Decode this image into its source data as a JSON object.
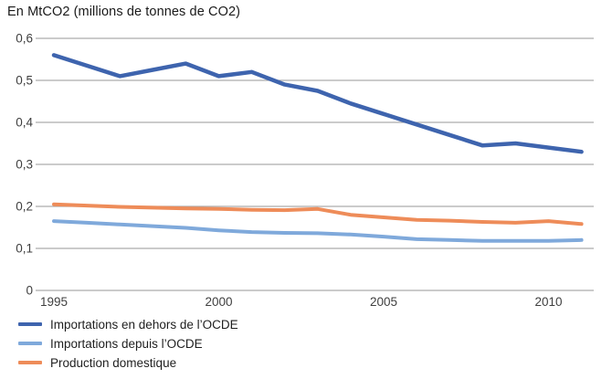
{
  "chart_data": {
    "type": "line",
    "title": "En MtCO2 (millions de tonnes de CO2)",
    "x": [
      1995,
      1996,
      1997,
      1998,
      1999,
      2000,
      2001,
      2002,
      2003,
      2004,
      2005,
      2006,
      2007,
      2008,
      2009,
      2010,
      2011
    ],
    "series": [
      {
        "name": "Importations en dehors de l’OCDE",
        "color": "#3e64ae",
        "stroke_width": 4.5,
        "values": [
          0.56,
          0.535,
          0.51,
          0.525,
          0.54,
          0.51,
          0.52,
          0.49,
          0.475,
          0.445,
          0.42,
          0.395,
          0.37,
          0.345,
          0.35,
          0.34,
          0.33
        ]
      },
      {
        "name": "Importations depuis l’OCDE",
        "color": "#7fa9db",
        "stroke_width": 4,
        "values": [
          0.165,
          0.161,
          0.157,
          0.153,
          0.149,
          0.143,
          0.139,
          0.137,
          0.136,
          0.133,
          0.128,
          0.122,
          0.12,
          0.118,
          0.118,
          0.118,
          0.12
        ]
      },
      {
        "name": "Production domestique",
        "color": "#ee8c59",
        "stroke_width": 4,
        "values": [
          0.205,
          0.202,
          0.199,
          0.197,
          0.195,
          0.194,
          0.192,
          0.191,
          0.194,
          0.18,
          0.174,
          0.168,
          0.166,
          0.163,
          0.161,
          0.165,
          0.158
        ]
      }
    ],
    "ylim": [
      0,
      0.6
    ],
    "xlabel": "",
    "ylabel": "",
    "y_ticks": {
      "values": [
        0,
        0.1,
        0.2,
        0.3,
        0.4,
        0.5,
        0.6
      ],
      "labels": [
        "0",
        "0,1",
        "0,2",
        "0,3",
        "0,4",
        "0,5",
        "0,6"
      ]
    },
    "x_ticks": [
      {
        "year": 1995,
        "label": "1995"
      },
      {
        "year": 2000,
        "label": "2000"
      },
      {
        "year": 2005,
        "label": "2005"
      },
      {
        "year": 2010,
        "label": "2010"
      }
    ],
    "grid": "horizontal-only",
    "gridline_color": "#acacac",
    "tick_label_color": "#3f3f3f",
    "legend_position": "bottom-left"
  }
}
